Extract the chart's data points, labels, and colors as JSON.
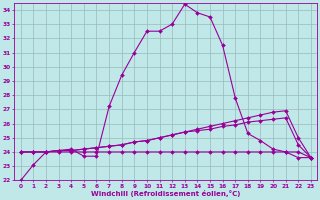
{
  "xlabel": "Windchill (Refroidissement éolien,°C)",
  "xlim": [
    -0.5,
    23.5
  ],
  "ylim": [
    22,
    34.5
  ],
  "xticks": [
    0,
    1,
    2,
    3,
    4,
    5,
    6,
    7,
    8,
    9,
    10,
    11,
    12,
    13,
    14,
    15,
    16,
    17,
    18,
    19,
    20,
    21,
    22,
    23
  ],
  "yticks": [
    22,
    23,
    24,
    25,
    26,
    27,
    28,
    29,
    30,
    31,
    32,
    33,
    34
  ],
  "bg_color": "#c0e8e8",
  "line_color": "#990099",
  "grid_color": "#99bbbb",
  "series": [
    [
      22.0,
      23.1,
      24.0,
      24.1,
      24.2,
      23.7,
      23.7,
      27.2,
      29.4,
      31.0,
      32.5,
      32.5,
      33.0,
      34.4,
      33.8,
      33.5,
      31.5,
      27.8,
      25.3,
      24.8,
      24.2,
      24.0,
      23.6,
      23.6
    ],
    [
      24.0,
      24.0,
      24.0,
      24.1,
      24.1,
      24.2,
      24.3,
      24.4,
      24.5,
      24.7,
      24.8,
      25.0,
      25.2,
      25.4,
      25.6,
      25.8,
      26.0,
      26.2,
      26.4,
      26.6,
      26.8,
      26.9,
      25.0,
      23.6
    ],
    [
      24.0,
      24.0,
      24.0,
      24.1,
      24.1,
      24.2,
      24.3,
      24.4,
      24.5,
      24.7,
      24.8,
      25.0,
      25.2,
      25.4,
      25.5,
      25.6,
      25.8,
      25.9,
      26.1,
      26.2,
      26.3,
      26.4,
      24.5,
      23.6
    ],
    [
      24.0,
      24.0,
      24.0,
      24.0,
      24.0,
      24.0,
      24.0,
      24.0,
      24.0,
      24.0,
      24.0,
      24.0,
      24.0,
      24.0,
      24.0,
      24.0,
      24.0,
      24.0,
      24.0,
      24.0,
      24.0,
      24.0,
      24.0,
      23.6
    ]
  ]
}
